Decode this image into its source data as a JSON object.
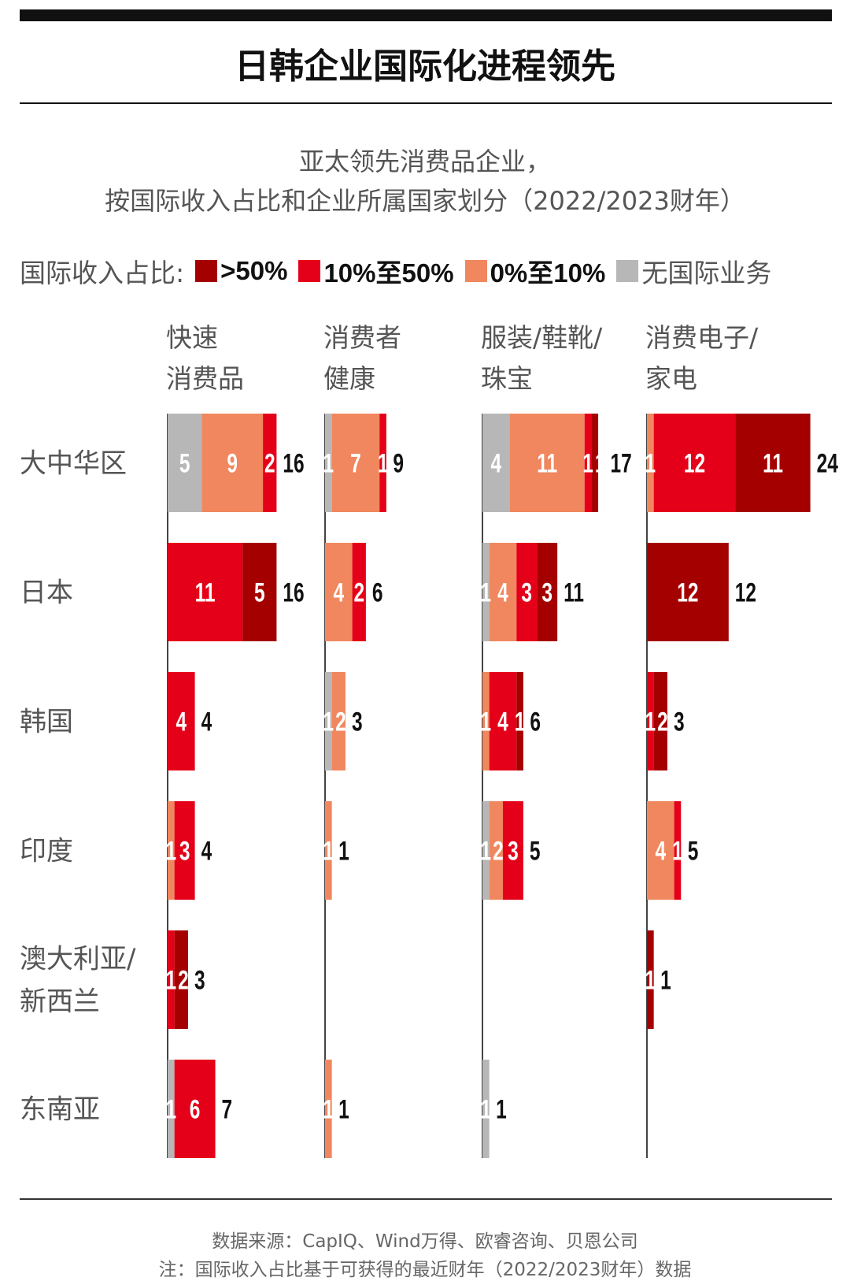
{
  "title": "日韩企业国际化进程领先",
  "subtitle_lines": [
    "亚太领先消费品企业，",
    "按国际收入占比和企业所属国家划分（2022/2023财年）"
  ],
  "legend": {
    "label": "国际收入占比:",
    "items": [
      {
        "label": ">50%",
        "color": "#a50000"
      },
      {
        "label": "10%至50%",
        "color": "#e50019"
      },
      {
        "label": "0%至10%",
        "color": "#f0875e"
      },
      {
        "label": "无国际业务",
        "color": "#b7b7b7"
      }
    ]
  },
  "source_lines": [
    "数据来源：CapIQ、Wind万得、欧睿咨询、贝恩公司",
    "注：国际收入占比基于可获得的最近财年（2022/2023财年）数据"
  ],
  "chart_data": {
    "type": "bar",
    "orientation": "horizontal-stacked-small-multiples",
    "title": "日韩企业国际化进程领先",
    "segment_order": [
      "无国际业务",
      "0%至10%",
      "10%至50%",
      ">50%"
    ],
    "segment_colors": [
      "#b7b7b7",
      "#f0875e",
      "#e50019",
      "#a50000"
    ],
    "panels": [
      {
        "name_lines": [
          "快速",
          "消费品"
        ]
      },
      {
        "name_lines": [
          "消费者",
          "健康"
        ]
      },
      {
        "name_lines": [
          "服装/鞋靴/",
          "珠宝"
        ]
      },
      {
        "name_lines": [
          "消费电子/",
          "家电"
        ]
      }
    ],
    "rows": [
      {
        "name_lines": [
          "大中华区"
        ],
        "values": [
          [
            5,
            9,
            2,
            0
          ],
          [
            1,
            7,
            1,
            0
          ],
          [
            4,
            11,
            1,
            1
          ],
          [
            0,
            1,
            12,
            11
          ]
        ],
        "totals": [
          "16",
          "9",
          "17",
          "24"
        ]
      },
      {
        "name_lines": [
          "日本"
        ],
        "values": [
          [
            0,
            0,
            11,
            5
          ],
          [
            0,
            4,
            2,
            0
          ],
          [
            1,
            4,
            3,
            3
          ],
          [
            0,
            0,
            0,
            12
          ]
        ],
        "totals": [
          "16",
          "6",
          "11",
          "12"
        ]
      },
      {
        "name_lines": [
          "韩国"
        ],
        "values": [
          [
            0,
            0,
            4,
            0
          ],
          [
            1,
            2,
            0,
            0
          ],
          [
            0,
            1,
            4,
            1
          ],
          [
            0,
            0,
            1,
            2
          ]
        ],
        "totals": [
          "4",
          "3",
          "6",
          "3"
        ]
      },
      {
        "name_lines": [
          "印度"
        ],
        "values": [
          [
            0,
            1,
            3,
            0
          ],
          [
            0,
            1,
            0,
            0
          ],
          [
            1,
            2,
            3,
            0
          ],
          [
            0,
            4,
            1,
            0
          ]
        ],
        "totals": [
          "4",
          "1",
          "5",
          "5"
        ]
      },
      {
        "name_lines": [
          "澳大利亚/",
          "新西兰"
        ],
        "values": [
          [
            0,
            0,
            1,
            2
          ],
          [
            0,
            0,
            0,
            0
          ],
          [
            0,
            0,
            0,
            0
          ],
          [
            0,
            0,
            0,
            1
          ]
        ],
        "totals": [
          "3",
          "",
          "",
          "1"
        ]
      },
      {
        "name_lines": [
          "东南亚"
        ],
        "values": [
          [
            1,
            0,
            6,
            0
          ],
          [
            0,
            1,
            0,
            0
          ],
          [
            1,
            0,
            0,
            0
          ],
          [
            0,
            0,
            0,
            0
          ]
        ],
        "totals": [
          "7",
          "1",
          "1",
          ""
        ]
      }
    ]
  }
}
